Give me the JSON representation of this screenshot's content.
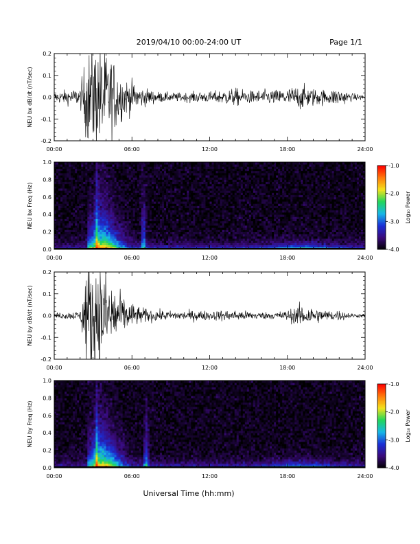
{
  "header": {
    "title": "2019/04/10  00:00-24:00 UT",
    "page": "Page 1/1"
  },
  "xlabel": "Universal Time (hh:mm)",
  "colorbar": {
    "label": "Log₁₀ Power",
    "ticks": [
      "-1.0",
      "-2.0",
      "-3.0",
      "-4.0"
    ],
    "range": [
      -4.0,
      -1.0
    ],
    "colors": [
      "#000000",
      "#3a0a7a",
      "#1a2fd6",
      "#16b6e6",
      "#21d65b",
      "#f3e21c",
      "#ff7a0a",
      "#ff0000"
    ]
  },
  "chart_data": [
    {
      "type": "line",
      "ylabel": "NEU bx dB/dt (nT/sec)",
      "xlim": [
        0,
        24
      ],
      "ylim": [
        -0.2,
        0.2
      ],
      "xticks": [
        "00:00",
        "06:00",
        "12:00",
        "18:00",
        "24:00"
      ],
      "yticks": [
        "-0.2",
        "-0.1",
        "0.0",
        "0.1",
        "0.2"
      ],
      "series": [
        {
          "x": [
            0,
            1,
            2,
            2.5,
            3,
            3.5,
            4,
            4.5,
            5,
            5.5,
            6,
            6.5,
            7,
            8,
            9,
            10,
            11,
            12,
            13,
            14,
            15,
            16,
            17,
            18,
            19,
            19.5,
            20,
            21,
            22,
            23,
            24
          ],
          "amplitude": [
            0.03,
            0.04,
            0.05,
            0.25,
            0.3,
            0.3,
            0.25,
            0.22,
            0.15,
            0.1,
            0.09,
            0.06,
            0.05,
            0.03,
            0.025,
            0.025,
            0.03,
            0.03,
            0.04,
            0.05,
            0.035,
            0.04,
            0.04,
            0.05,
            0.07,
            0.06,
            0.05,
            0.04,
            0.05,
            0.02,
            0.015
          ]
        }
      ]
    },
    {
      "type": "heatmap",
      "ylabel": "NEU bx Freq (Hz)",
      "xlim": [
        0,
        24
      ],
      "ylim": [
        0.0,
        1.0
      ],
      "xticks": [
        "00:00",
        "06:00",
        "12:00",
        "18:00",
        "24:00"
      ],
      "yticks": [
        "0.0",
        "0.2",
        "0.4",
        "0.6",
        "0.8",
        "1.0"
      ],
      "value_range": [
        -4.0,
        -1.0
      ]
    },
    {
      "type": "line",
      "ylabel": "NEU by dB/dt (nT/sec)",
      "xlim": [
        0,
        24
      ],
      "ylim": [
        -0.2,
        0.2
      ],
      "xticks": [
        "00:00",
        "06:00",
        "12:00",
        "18:00",
        "24:00"
      ],
      "yticks": [
        "-0.2",
        "-0.1",
        "0.0",
        "0.1",
        "0.2"
      ],
      "series": [
        {
          "x": [
            0,
            1,
            2,
            2.5,
            3,
            3.5,
            4,
            4.5,
            5,
            5.5,
            6,
            6.5,
            7,
            8,
            9,
            10,
            11,
            12,
            13,
            14,
            15,
            16,
            17,
            18,
            19,
            19.5,
            20,
            21,
            22,
            23,
            24
          ],
          "amplitude": [
            0.015,
            0.02,
            0.025,
            0.3,
            0.3,
            0.3,
            0.25,
            0.2,
            0.13,
            0.09,
            0.07,
            0.05,
            0.04,
            0.03,
            0.025,
            0.025,
            0.03,
            0.025,
            0.03,
            0.03,
            0.025,
            0.02,
            0.02,
            0.03,
            0.06,
            0.06,
            0.045,
            0.03,
            0.03,
            0.012,
            0.01
          ]
        }
      ]
    },
    {
      "type": "heatmap",
      "ylabel": "NEU by Freq (Hz)",
      "xlim": [
        0,
        24
      ],
      "ylim": [
        0.0,
        1.0
      ],
      "xticks": [
        "00:00",
        "06:00",
        "12:00",
        "18:00",
        "24:00"
      ],
      "yticks": [
        "0.0",
        "0.2",
        "0.4",
        "0.6",
        "0.8",
        "1.0"
      ],
      "value_range": [
        -4.0,
        -1.0
      ]
    }
  ]
}
